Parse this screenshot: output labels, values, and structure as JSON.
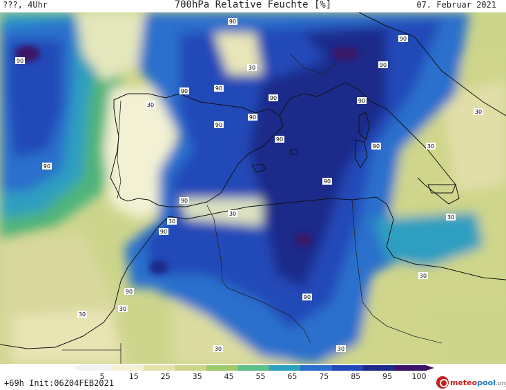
{
  "header": {
    "location_time": "???, 4Uhr",
    "title": "700hPa Relative Feuchte [%]",
    "date": "07. Februar 2021"
  },
  "legend": {
    "ticks": [
      "5",
      "15",
      "25",
      "35",
      "45",
      "55",
      "65",
      "75",
      "85",
      "95",
      "100"
    ],
    "colors": [
      "#f2f2f0",
      "#f4f1d6",
      "#e6e2b0",
      "#cfd58a",
      "#9fca6c",
      "#5fbf88",
      "#2f9fc0",
      "#2b6fcc",
      "#2348b8",
      "#1e2a8a",
      "#3a1466"
    ]
  },
  "footer": {
    "init": "+69h Init:06Z04FEB2021"
  },
  "logo": {
    "part1": "meteo",
    "part2": "pool",
    "part3": ".org"
  },
  "contour_labels": [
    "90",
    "30"
  ]
}
